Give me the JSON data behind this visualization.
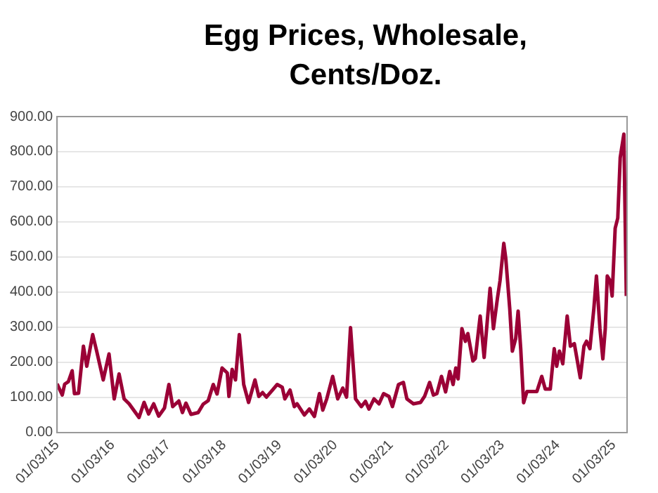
{
  "chart_data": {
    "type": "line",
    "title": "Egg Prices, Wholesale, Cents/Doz.",
    "x": [
      "2015-01-03",
      "2015-02-06",
      "2015-02-22",
      "2015-03-18",
      "2015-04-12",
      "2015-04-27",
      "2015-05-24",
      "2015-06-25",
      "2015-07-17",
      "2015-08-25",
      "2015-09-20",
      "2015-11-02",
      "2015-12-10",
      "2016-01-13",
      "2016-02-14",
      "2016-03-18",
      "2016-04-20",
      "2016-06-24",
      "2016-07-27",
      "2016-08-26",
      "2016-09-28",
      "2016-10-31",
      "2016-12-08",
      "2017-01-06",
      "2017-01-31",
      "2017-03-12",
      "2017-04-05",
      "2017-04-28",
      "2017-05-31",
      "2017-07-17",
      "2017-08-19",
      "2017-09-21",
      "2017-10-24",
      "2017-11-18",
      "2017-12-21",
      "2018-01-24",
      "2018-02-04",
      "2018-02-25",
      "2018-03-19",
      "2018-04-13",
      "2018-05-12",
      "2018-06-13",
      "2018-07-25",
      "2018-08-19",
      "2018-09-13",
      "2018-10-08",
      "2018-11-15",
      "2018-12-18",
      "2019-01-20",
      "2019-02-06",
      "2019-03-12",
      "2019-04-09",
      "2019-04-27",
      "2019-06-14",
      "2019-07-17",
      "2019-08-19",
      "2019-09-21",
      "2019-10-13",
      "2019-11-08",
      "2019-12-17",
      "2020-01-19",
      "2020-02-21",
      "2020-03-17",
      "2020-04-12",
      "2020-05-15",
      "2020-06-22",
      "2020-07-19",
      "2020-08-11",
      "2020-09-13",
      "2020-10-16",
      "2020-11-15",
      "2020-12-20",
      "2021-01-12",
      "2021-02-21",
      "2021-03-25",
      "2021-04-17",
      "2021-05-30",
      "2021-07-16",
      "2021-08-11",
      "2021-09-13",
      "2021-10-08",
      "2021-10-31",
      "2021-11-30",
      "2021-12-27",
      "2022-01-23",
      "2022-02-14",
      "2022-03-04",
      "2022-03-19",
      "2022-04-13",
      "2022-05-06",
      "2022-05-22",
      "2022-06-24",
      "2022-07-10",
      "2022-08-11",
      "2022-09-06",
      "2022-10-15",
      "2022-11-06",
      "2022-12-02",
      "2022-12-19",
      "2023-01-13",
      "2023-01-26",
      "2023-02-21",
      "2023-03-10",
      "2023-04-01",
      "2023-04-17",
      "2023-05-04",
      "2023-05-23",
      "2023-06-14",
      "2023-08-18",
      "2023-09-19",
      "2023-10-12",
      "2023-11-14",
      "2023-12-10",
      "2023-12-26",
      "2024-01-13",
      "2024-02-04",
      "2024-03-04",
      "2024-03-25",
      "2024-04-20",
      "2024-05-29",
      "2024-06-22",
      "2024-07-09",
      "2024-07-31",
      "2024-08-26",
      "2024-09-12",
      "2024-10-05",
      "2024-10-24",
      "2024-11-09",
      "2024-11-22",
      "2024-12-11",
      "2024-12-24",
      "2025-01-13",
      "2025-01-30",
      "2025-02-15",
      "2025-03-11",
      "2025-03-27"
    ],
    "series": [
      {
        "color": "#9b0036",
        "values": [
          139,
          107,
          138,
          145,
          176,
          111,
          112,
          246,
          189,
          279,
          232,
          150,
          224,
          96,
          167,
          96,
          82,
          43,
          86,
          53,
          82,
          47,
          70,
          137,
          74,
          90,
          57,
          84,
          52,
          57,
          81,
          91,
          137,
          110,
          184,
          170,
          103,
          180,
          150,
          279,
          137,
          86,
          150,
          103,
          114,
          101,
          120,
          137,
          129,
          96,
          121,
          74,
          82,
          50,
          67,
          46,
          111,
          64,
          96,
          160,
          96,
          127,
          101,
          299,
          96,
          74,
          89,
          67,
          96,
          82,
          111,
          103,
          74,
          137,
          143,
          96,
          82,
          86,
          103,
          143,
          107,
          111,
          160,
          116,
          174,
          137,
          184,
          153,
          296,
          260,
          282,
          204,
          211,
          332,
          214,
          411,
          296,
          382,
          432,
          539,
          496,
          353,
          232,
          268,
          346,
          239,
          85,
          117,
          117,
          160,
          124,
          124,
          239,
          189,
          232,
          196,
          332,
          246,
          253,
          156,
          246,
          260,
          239,
          353,
          446,
          296,
          210,
          296,
          446,
          432,
          389,
          582,
          611,
          783,
          850,
          389
        ]
      }
    ],
    "xlim": [
      "2015-01-03",
      "2025-04-01"
    ],
    "xticks": [
      {
        "value": "2015-01-03",
        "label": "01/03/15"
      },
      {
        "value": "2016-01-03",
        "label": "01/03/16"
      },
      {
        "value": "2017-01-03",
        "label": "01/03/17"
      },
      {
        "value": "2018-01-03",
        "label": "01/03/18"
      },
      {
        "value": "2019-01-03",
        "label": "01/03/19"
      },
      {
        "value": "2020-01-03",
        "label": "01/03/20"
      },
      {
        "value": "2021-01-03",
        "label": "01/03/21"
      },
      {
        "value": "2022-01-03",
        "label": "01/03/22"
      },
      {
        "value": "2023-01-03",
        "label": "01/03/23"
      },
      {
        "value": "2024-01-03",
        "label": "01/03/24"
      },
      {
        "value": "2025-01-03",
        "label": "01/03/25"
      }
    ],
    "ylim": [
      0,
      900
    ],
    "yticks": [
      {
        "value": 0,
        "label": "0.00"
      },
      {
        "value": 100,
        "label": "100.00"
      },
      {
        "value": 200,
        "label": "200.00"
      },
      {
        "value": 300,
        "label": "300.00"
      },
      {
        "value": 400,
        "label": "400.00"
      },
      {
        "value": 500,
        "label": "500.00"
      },
      {
        "value": 600,
        "label": "600.00"
      },
      {
        "value": 700,
        "label": "700.00"
      },
      {
        "value": 800,
        "label": "800.00"
      },
      {
        "value": 900,
        "label": "900.00"
      }
    ],
    "grid": "y",
    "legend": false,
    "marker": "none",
    "line_style": "solid"
  }
}
